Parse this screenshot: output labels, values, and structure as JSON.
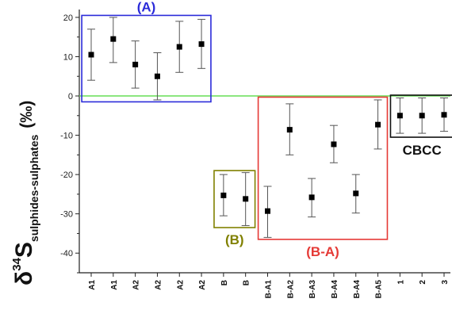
{
  "chart_data": {
    "type": "scatter",
    "ylabel": {
      "symbol": "δ",
      "superscript": "34",
      "main": "S",
      "subscript": "sulphides-sulphates",
      "unit": "(‰)"
    },
    "ylim": [
      -45,
      22
    ],
    "yticks": [
      20,
      10,
      0,
      -10,
      -20,
      -30,
      -40
    ],
    "categories": [
      "A1",
      "A1",
      "A2",
      "A2",
      "A2",
      "A2",
      "B",
      "B",
      "B-A1",
      "B-A2",
      "B-A3",
      "B-A4",
      "B-A4",
      "B-A5",
      "1",
      "2",
      "3"
    ],
    "series": [
      {
        "values": [
          10.5,
          14.5,
          8,
          5,
          12.5,
          13.2,
          -25.3,
          -26.2,
          -29.3,
          -8.6,
          -25.8,
          -12.3,
          -24.8,
          -7.3,
          -5,
          -5,
          -4.8
        ],
        "error_low": [
          4,
          8.5,
          2,
          -1,
          6,
          7,
          -30.5,
          -33,
          -36,
          -15,
          -30.8,
          -17,
          -29.8,
          -13.5,
          -9.5,
          -9.5,
          -9
        ],
        "error_high": [
          17,
          20,
          14,
          11,
          19,
          19.5,
          -20,
          -19.5,
          -23,
          -2,
          -21,
          -7.5,
          -20,
          -1,
          -0.5,
          -0.5,
          -0.5
        ]
      }
    ],
    "reference_line": {
      "y": 0,
      "color": "#66dd55"
    },
    "groups": [
      {
        "label": "(A)",
        "color": "#2b2bd9",
        "from": 0,
        "to": 5,
        "ybox": [
          -1.5,
          20.5
        ]
      },
      {
        "label": "(B)",
        "color": "#808000",
        "from": 6,
        "to": 7,
        "ybox": [
          -33.5,
          -19
        ]
      },
      {
        "label": "(B-A)",
        "color": "#e53935",
        "from": 8,
        "to": 13,
        "ybox": [
          -36.5,
          -0.3
        ]
      },
      {
        "label": "CBCC",
        "color": "#111111",
        "from": 14,
        "to": 16,
        "ybox": [
          -10.5,
          0.2
        ]
      }
    ]
  }
}
